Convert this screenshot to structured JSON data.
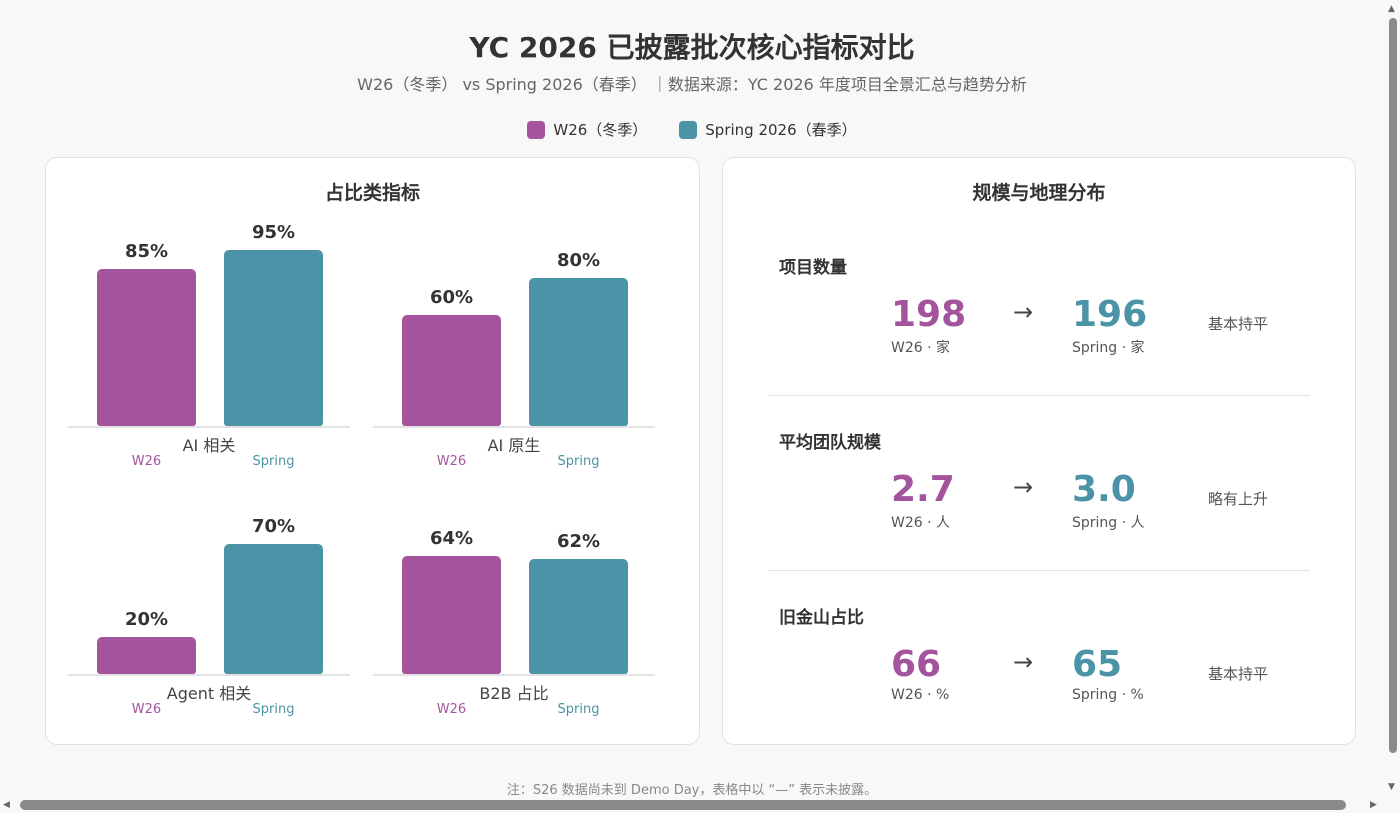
{
  "title": "YC 2026 已披露批次核心指标对比",
  "subtitle": "W26（冬季） vs Spring 2026（春季） ｜数据来源：YC 2026 年度项目全景汇总与趋势分析",
  "colors": {
    "w26": "#a4549c",
    "spring": "#4b93a6"
  },
  "legend": {
    "w26": "W26（冬季）",
    "spring": "Spring 2026（春季）"
  },
  "left_panel": {
    "title": "占比类指标"
  },
  "right_panel": {
    "title": "规模与地理分布"
  },
  "chart_data": {
    "type": "bar",
    "unit": "%",
    "ylim": [
      0,
      100
    ],
    "series_short": {
      "w26": "W26",
      "spring": "Spring"
    },
    "groups": [
      {
        "category": "AI 相关",
        "w26": 85,
        "spring": 95,
        "w26_label": "85%",
        "spring_label": "95%"
      },
      {
        "category": "AI 原生",
        "w26": 60,
        "spring": 80,
        "w26_label": "60%",
        "spring_label": "80%"
      },
      {
        "category": "Agent 相关",
        "w26": 20,
        "spring": 70,
        "w26_label": "20%",
        "spring_label": "70%"
      },
      {
        "category": "B2B 占比",
        "w26": 64,
        "spring": 62,
        "w26_label": "64%",
        "spring_label": "62%"
      }
    ]
  },
  "metrics": [
    {
      "label": "项目数量",
      "w26_value": "198",
      "w26_sub": "W26 · 家",
      "spring_value": "196",
      "spring_sub": "Spring · 家",
      "arrow": "→",
      "trend": "基本持平"
    },
    {
      "label": "平均团队规模",
      "w26_value": "2.7",
      "w26_sub": "W26 · 人",
      "spring_value": "3.0",
      "spring_sub": "Spring · 人",
      "arrow": "→",
      "trend": "略有上升"
    },
    {
      "label": "旧金山占比",
      "w26_value": "66",
      "w26_sub": "W26 · %",
      "spring_value": "65",
      "spring_sub": "Spring · %",
      "arrow": "→",
      "trend": "基本持平"
    }
  ],
  "note": "注：S26 数据尚未到 Demo Day，表格中以 “—” 表示未披露。"
}
